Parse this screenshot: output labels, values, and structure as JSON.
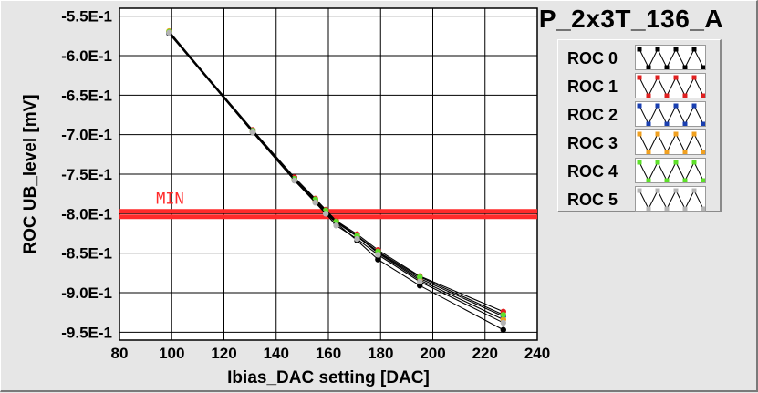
{
  "title": "P_2x3T_136_A",
  "chart_data": {
    "type": "line",
    "xlabel": "Ibias_DAC setting [DAC]",
    "ylabel": "ROC UB_level [mV]",
    "xlim": [
      80,
      240
    ],
    "ylim": [
      -0.96,
      -0.54
    ],
    "xticks": [
      80,
      100,
      120,
      140,
      160,
      180,
      200,
      220,
      240
    ],
    "xtick_labels": [
      "80",
      "100",
      "120",
      "140",
      "160",
      "180",
      "200",
      "220",
      "240"
    ],
    "yticks": [
      -0.55,
      -0.6,
      -0.65,
      -0.7,
      -0.75,
      -0.8,
      -0.85,
      -0.9,
      -0.95
    ],
    "ytick_labels": [
      "-5.5E-1",
      "-6.0E-1",
      "-6.5E-1",
      "-7.0E-1",
      "-7.5E-1",
      "-8.0E-1",
      "-8.5E-1",
      "-9.0E-1",
      "-9.5E-1"
    ],
    "grid": true,
    "legend_position": "top-right",
    "threshold": {
      "label": "MIN",
      "y_values": [
        -0.797,
        -0.804
      ],
      "color": "#ff2a2a"
    },
    "series": [
      {
        "name": "ROC 0",
        "color": "#000000",
        "x": [
          99,
          131,
          147,
          155,
          159,
          163,
          171,
          179,
          195,
          227
        ],
        "y": [
          -0.572,
          -0.697,
          -0.758,
          -0.785,
          -0.799,
          -0.812,
          -0.834,
          -0.858,
          -0.891,
          -0.947
        ]
      },
      {
        "name": "ROC 1",
        "color": "#e02020",
        "x": [
          99,
          131,
          147,
          155,
          159,
          163,
          171,
          179,
          195,
          227
        ],
        "y": [
          -0.57,
          -0.694,
          -0.754,
          -0.781,
          -0.795,
          -0.809,
          -0.826,
          -0.846,
          -0.879,
          -0.924
        ]
      },
      {
        "name": "ROC 2",
        "color": "#1a3fb0",
        "x": [
          99,
          131,
          147,
          155,
          159,
          163,
          171,
          179,
          195,
          227
        ],
        "y": [
          -0.571,
          -0.695,
          -0.756,
          -0.783,
          -0.797,
          -0.811,
          -0.829,
          -0.849,
          -0.882,
          -0.93
        ]
      },
      {
        "name": "ROC 3",
        "color": "#f0a020",
        "x": [
          99,
          131,
          147,
          155,
          159,
          163,
          171,
          179,
          195,
          227
        ],
        "y": [
          -0.569,
          -0.696,
          -0.757,
          -0.784,
          -0.798,
          -0.81,
          -0.828,
          -0.85,
          -0.884,
          -0.934
        ]
      },
      {
        "name": "ROC 4",
        "color": "#5ee02a",
        "x": [
          99,
          131,
          147,
          155,
          159,
          163,
          171,
          179,
          195,
          227
        ],
        "y": [
          -0.57,
          -0.695,
          -0.756,
          -0.782,
          -0.796,
          -0.81,
          -0.828,
          -0.848,
          -0.88,
          -0.928
        ]
      },
      {
        "name": "ROC 5",
        "color": "#b4b4b4",
        "x": [
          99,
          131,
          147,
          155,
          159,
          163,
          171,
          179,
          195,
          227
        ],
        "y": [
          -0.571,
          -0.697,
          -0.758,
          -0.786,
          -0.8,
          -0.815,
          -0.832,
          -0.852,
          -0.886,
          -0.938
        ]
      }
    ]
  }
}
